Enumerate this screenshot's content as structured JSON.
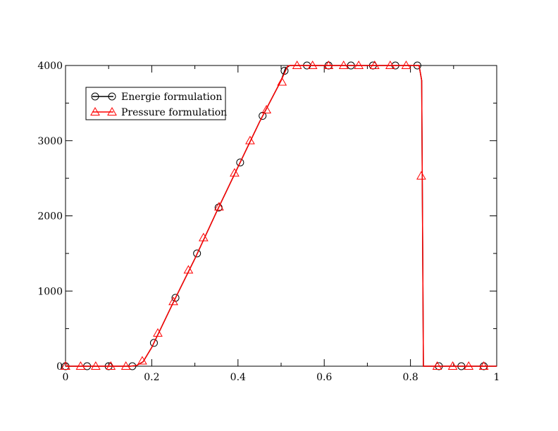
{
  "chart_data": {
    "type": "line",
    "title": "",
    "xlabel": "",
    "ylabel": "",
    "xlim": [
      0,
      1
    ],
    "ylim": [
      0,
      4000
    ],
    "x_ticks": [
      0,
      0.2,
      0.4,
      0.6,
      0.8,
      1
    ],
    "x_tick_labels": [
      "0",
      "0.2",
      "0.4",
      "0.6",
      "0.8",
      "1"
    ],
    "y_ticks": [
      0,
      1000,
      2000,
      3000,
      4000
    ],
    "y_tick_labels": [
      "0",
      "1000",
      "2000",
      "3000",
      "4000"
    ],
    "grid": false,
    "legend_position": "top-left",
    "series": [
      {
        "name": "Energie formulation",
        "color": "#000000",
        "marker": "circle",
        "line": [
          [
            0,
            0
          ],
          [
            0.15,
            0
          ],
          [
            0.165,
            10
          ],
          [
            0.18,
            60
          ],
          [
            0.2,
            250
          ],
          [
            0.25,
            850
          ],
          [
            0.3,
            1430
          ],
          [
            0.35,
            2050
          ],
          [
            0.4,
            2650
          ],
          [
            0.45,
            3250
          ],
          [
            0.5,
            3800
          ],
          [
            0.51,
            3960
          ],
          [
            0.52,
            4000
          ],
          [
            0.82,
            4000
          ],
          [
            0.826,
            3800
          ],
          [
            0.83,
            0
          ],
          [
            1,
            0
          ]
        ],
        "markers": [
          [
            0,
            0
          ],
          [
            0.05,
            0
          ],
          [
            0.1,
            0
          ],
          [
            0.155,
            0
          ],
          [
            0.205,
            310
          ],
          [
            0.255,
            910
          ],
          [
            0.305,
            1500
          ],
          [
            0.355,
            2110
          ],
          [
            0.405,
            2710
          ],
          [
            0.457,
            3330
          ],
          [
            0.508,
            3930
          ],
          [
            0.56,
            4000
          ],
          [
            0.61,
            4000
          ],
          [
            0.662,
            4000
          ],
          [
            0.713,
            4000
          ],
          [
            0.765,
            4000
          ],
          [
            0.816,
            4000
          ],
          [
            0.866,
            0
          ],
          [
            0.918,
            0
          ],
          [
            0.97,
            0
          ]
        ]
      },
      {
        "name": "Pressure formulation",
        "color": "#ff0000",
        "marker": "triangle",
        "line": [
          [
            0,
            0
          ],
          [
            0.15,
            0
          ],
          [
            0.165,
            10
          ],
          [
            0.18,
            60
          ],
          [
            0.2,
            250
          ],
          [
            0.25,
            850
          ],
          [
            0.3,
            1430
          ],
          [
            0.35,
            2050
          ],
          [
            0.4,
            2650
          ],
          [
            0.45,
            3250
          ],
          [
            0.5,
            3800
          ],
          [
            0.515,
            3990
          ],
          [
            0.52,
            4000
          ],
          [
            0.82,
            4000
          ],
          [
            0.826,
            3800
          ],
          [
            0.83,
            0
          ],
          [
            1,
            0
          ]
        ],
        "markers": [
          [
            0,
            0
          ],
          [
            0.035,
            0
          ],
          [
            0.07,
            0
          ],
          [
            0.105,
            0
          ],
          [
            0.14,
            0
          ],
          [
            0.178,
            70
          ],
          [
            0.214,
            440
          ],
          [
            0.25,
            860
          ],
          [
            0.285,
            1280
          ],
          [
            0.32,
            1710
          ],
          [
            0.356,
            2120
          ],
          [
            0.392,
            2570
          ],
          [
            0.428,
            3000
          ],
          [
            0.466,
            3410
          ],
          [
            0.502,
            3780
          ],
          [
            0.537,
            4000
          ],
          [
            0.573,
            4000
          ],
          [
            0.61,
            4000
          ],
          [
            0.645,
            4000
          ],
          [
            0.68,
            4000
          ],
          [
            0.717,
            4000
          ],
          [
            0.753,
            4000
          ],
          [
            0.79,
            4000
          ],
          [
            0.825,
            2530
          ],
          [
            0.862,
            0
          ],
          [
            0.898,
            0
          ],
          [
            0.935,
            0
          ],
          [
            0.97,
            0
          ]
        ]
      }
    ]
  }
}
